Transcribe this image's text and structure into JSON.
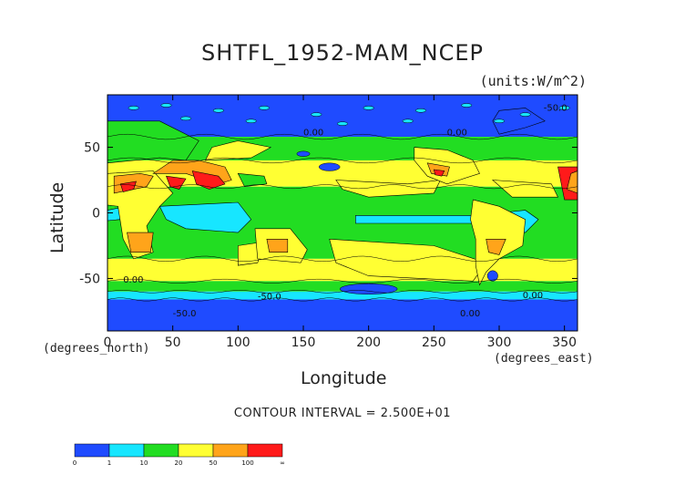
{
  "chart_data": {
    "type": "heatmap",
    "title": "SHTFL_1952-MAM_NCEP",
    "units": "(units:W/m^2)",
    "xlabel": "Longitude",
    "ylabel": "Latitude",
    "x_unit": "(degrees_east)",
    "y_unit": "(degrees_north)",
    "xlim": [
      0,
      360
    ],
    "ylim": [
      -90,
      90
    ],
    "x_ticks": [
      "0",
      "50",
      "100",
      "150",
      "200",
      "250",
      "300",
      "350"
    ],
    "y_ticks": [
      "50",
      "0",
      "-50"
    ],
    "contour_interval_text": "CONTOUR INTERVAL = 2.500E+01",
    "contour_labels": [
      "-50.0",
      "0.00",
      "-50.0",
      "0.00",
      "0.00",
      "-50.0",
      "0.00",
      "0.00"
    ],
    "colorbar": {
      "labels": [
        "0",
        "1",
        "10",
        "20",
        "50",
        "100",
        "∞"
      ],
      "colors": [
        "#1f4bff",
        "#17e6ff",
        "#22dd22",
        "#ffff33",
        "#ffa41a",
        "#ff1a1a"
      ]
    },
    "palette": {
      "blue": "#1f4bff",
      "cyan": "#17e6ff",
      "green": "#22dd22",
      "yellow": "#ffff33",
      "orange": "#ffa41a",
      "red": "#ff1a1a",
      "dark_red": "#b00000"
    }
  }
}
